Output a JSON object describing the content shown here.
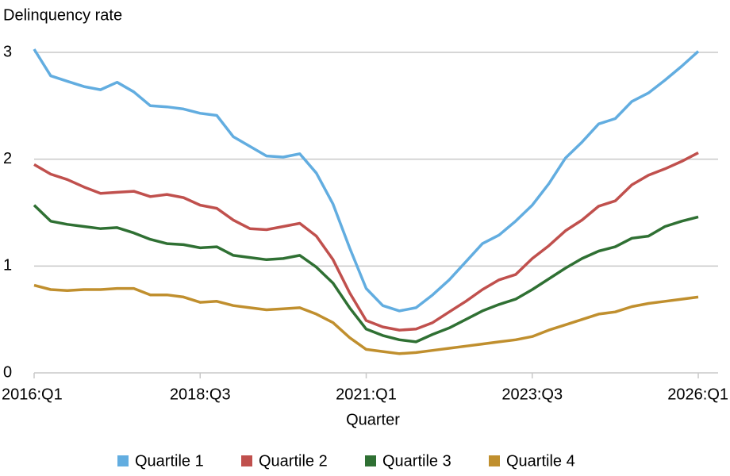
{
  "chart_data": {
    "type": "line",
    "y_label": "Delinquency rate",
    "x_label": "Quarter",
    "categories": [
      "2016:Q1",
      null,
      null,
      null,
      null,
      null,
      null,
      null,
      null,
      null,
      "2018:Q3",
      null,
      null,
      null,
      null,
      null,
      null,
      null,
      null,
      null,
      "2021:Q1",
      null,
      null,
      null,
      null,
      null,
      null,
      null,
      null,
      null,
      "2023:Q3",
      null,
      null,
      null,
      null,
      null,
      null,
      null,
      null,
      null,
      "2026:Q1"
    ],
    "series": [
      {
        "name": "Quartile 1",
        "color": "#62ade0",
        "values": [
          3.03,
          2.78,
          2.73,
          2.68,
          2.65,
          2.72,
          2.63,
          2.5,
          2.49,
          2.47,
          2.43,
          2.41,
          2.21,
          2.12,
          2.03,
          2.02,
          2.05,
          1.87,
          1.58,
          1.17,
          0.79,
          0.63,
          0.58,
          0.61,
          0.73,
          0.87,
          1.04,
          1.21,
          1.29,
          1.42,
          1.57,
          1.77,
          2.01,
          2.16,
          2.33,
          2.38,
          2.54,
          2.62,
          2.74,
          2.87,
          3.01
        ]
      },
      {
        "name": "Quartile 2",
        "color": "#c0504d",
        "values": [
          1.95,
          1.86,
          1.81,
          1.74,
          1.68,
          1.69,
          1.7,
          1.65,
          1.67,
          1.64,
          1.57,
          1.54,
          1.43,
          1.35,
          1.34,
          1.37,
          1.4,
          1.28,
          1.06,
          0.75,
          0.49,
          0.43,
          0.4,
          0.41,
          0.47,
          0.57,
          0.67,
          0.78,
          0.87,
          0.92,
          1.07,
          1.19,
          1.33,
          1.43,
          1.56,
          1.61,
          1.76,
          1.85,
          1.91,
          1.98,
          2.06
        ]
      },
      {
        "name": "Quartile 3",
        "color": "#2f7033",
        "values": [
          1.57,
          1.42,
          1.39,
          1.37,
          1.35,
          1.36,
          1.31,
          1.25,
          1.21,
          1.2,
          1.17,
          1.18,
          1.1,
          1.08,
          1.06,
          1.07,
          1.1,
          0.99,
          0.84,
          0.61,
          0.41,
          0.35,
          0.31,
          0.29,
          0.36,
          0.42,
          0.5,
          0.58,
          0.64,
          0.69,
          0.78,
          0.88,
          0.98,
          1.07,
          1.14,
          1.18,
          1.26,
          1.28,
          1.37,
          1.42,
          1.46
        ]
      },
      {
        "name": "Quartile 4",
        "color": "#c08f2e",
        "values": [
          0.82,
          0.78,
          0.77,
          0.78,
          0.78,
          0.79,
          0.79,
          0.73,
          0.73,
          0.71,
          0.66,
          0.67,
          0.63,
          0.61,
          0.59,
          0.6,
          0.61,
          0.55,
          0.47,
          0.33,
          0.22,
          0.2,
          0.18,
          0.19,
          0.21,
          0.23,
          0.25,
          0.27,
          0.29,
          0.31,
          0.34,
          0.4,
          0.45,
          0.5,
          0.55,
          0.57,
          0.62,
          0.65,
          0.67,
          0.69,
          0.71
        ]
      }
    ],
    "ylim": [
      0,
      3
    ],
    "yticks": [
      0,
      1,
      2,
      3
    ],
    "grid": true,
    "legend": "bottom"
  }
}
